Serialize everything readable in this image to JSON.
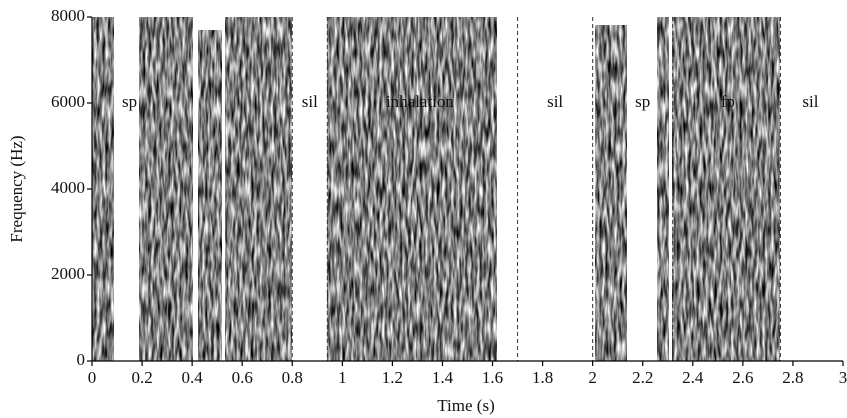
{
  "chart_data": {
    "type": "spectrogram",
    "x_label": "Time (s)",
    "y_label": "Frequency (Hz)",
    "xlim": [
      0,
      3
    ],
    "ylim": [
      0,
      8000
    ],
    "xticks": [
      0,
      0.2,
      0.4,
      0.6,
      0.8,
      1,
      1.2,
      1.4,
      1.6,
      1.8,
      2,
      2.2,
      2.4,
      2.6,
      2.8,
      3
    ],
    "yticks": [
      0,
      2000,
      4000,
      6000,
      8000
    ],
    "boundaries": [
      0.8,
      0.94,
      1.7,
      2.0,
      2.32,
      2.75
    ],
    "annotations": [
      {
        "text": "sp",
        "x": 0.15,
        "y": 6000
      },
      {
        "text": "sil",
        "x": 0.87,
        "y": 6000
      },
      {
        "text": "inhalation",
        "x": 1.31,
        "y": 6000
      },
      {
        "text": "sil",
        "x": 1.85,
        "y": 6000
      },
      {
        "text": "sp",
        "x": 2.2,
        "y": 6000
      },
      {
        "text": "fp",
        "x": 2.54,
        "y": 6000
      },
      {
        "text": "sil",
        "x": 2.87,
        "y": 6000
      }
    ]
  }
}
